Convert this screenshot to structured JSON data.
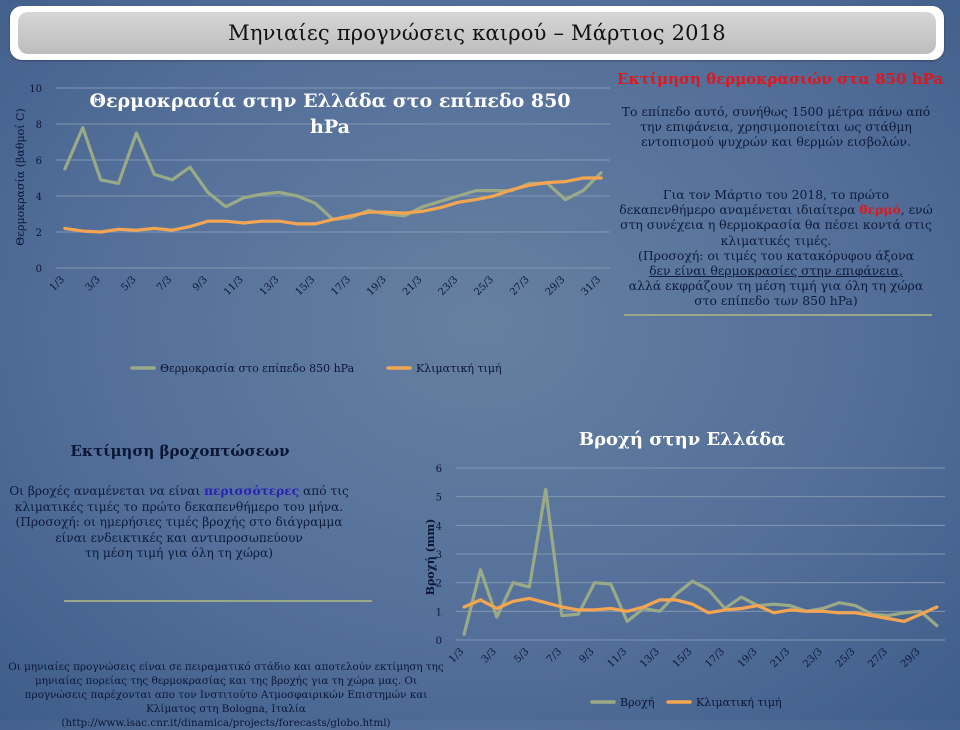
{
  "header": {
    "title": "Μηνιαίες προγνώσεις καιρού – Μάρτιος 2018"
  },
  "temp_panel": {
    "heading": "Εκτίμηση θερμοκρασιών στα 850 hPa",
    "p1": "Το επίπεδο αυτό, συνήθως 1500 μέτρα πάνω από την επιφάνεια, χρησιμοποιείται ως στάθμη εντοπισμού ψυχρών και θερμών εισβολών.",
    "p2_a": "Για τον Μάρτιο του 2018, το πρώτο δεκαπενθήμερο αναμένεται ιδιαίτερα ",
    "p2_hl": "θερμό",
    "p2_b": ", ενώ στη συνέχεια η θερμοκρασία θα πέσει κοντά στις κλιματικές τιμές.",
    "p2_c": "(Προσοχή: οι τιμές του κατακόρυφου άξονα",
    "p2_u": "δεν είναι θερμοκρασίες στην επιφάνεια,",
    "p2_d": "αλλά εκφράζουν τη μέση τιμή για όλη τη χώρα στο επίπεδο των 850 hPa)"
  },
  "rain_panel": {
    "heading": "Εκτίμηση βροχοπτώσεων",
    "p_a": "Οι βροχές αναμένεται να είναι ",
    "p_hl": "περισσότερες",
    "p_b": " από τις κλιματικές τιμές το πρώτο δεκαπενθήμερο του μήνα.",
    "p_c": "(Προσοχή: οι ημερήσιες τιμές βροχής στο διάγραμμα είναι ενδεικτικές και αντιπροσωπεύουν",
    "p_d": "τη μέση τιμή για όλη τη χώρα)"
  },
  "footer": {
    "text": "Οι μηνιαίες προγνώσεις είναι σε πειραματικό στάδιο και αποτελούν εκτίμηση της μηνιαίας πορείας της θερμοκρασίας και της βροχής για τη χώρα μας. Οι προγνώσεις παρέχονται απο τον Ινστιτούτο Ατμοσφαιρικών Επιστημών και Κλίματος στη Bologna, Ιταλία (http://www.isac.cnr.it/dinamica/projects/forecasts/globo.html)"
  },
  "colors": {
    "forecast": "#9aaa86",
    "climate": "#f3a552",
    "grid": "#8296b2",
    "axis_text": "#0b1636"
  },
  "chart_data": [
    {
      "type": "line",
      "title": "Θερμοκρασία στην Ελλάδα στο επίπεδο 850 hPa",
      "xlabel": "",
      "ylabel": "Θερμοκρασία (βαθμοί C)",
      "ylim": [
        0,
        10
      ],
      "yticks": [
        0,
        2,
        4,
        6,
        8,
        10
      ],
      "x": [
        "1/3",
        "2/3",
        "3/3",
        "4/3",
        "5/3",
        "6/3",
        "7/3",
        "8/3",
        "9/3",
        "10/3",
        "11/3",
        "12/3",
        "13/3",
        "14/3",
        "15/3",
        "16/3",
        "17/3",
        "18/3",
        "19/3",
        "20/3",
        "21/3",
        "22/3",
        "23/3",
        "24/3",
        "25/3",
        "26/3",
        "27/3",
        "28/3",
        "29/3",
        "30/3",
        "31/3"
      ],
      "xtick_labels": [
        "1/3",
        "3/3",
        "5/3",
        "7/3",
        "9/3",
        "11/3",
        "13/3",
        "15/3",
        "17/3",
        "19/3",
        "21/3",
        "23/3",
        "25/3",
        "27/3",
        "29/3",
        "31/3"
      ],
      "legend": "bottom",
      "series": [
        {
          "name": "Θερμοκρασία στο επίπεδο 850 hPa",
          "values": [
            5.5,
            7.8,
            4.9,
            4.7,
            7.5,
            5.2,
            4.9,
            5.6,
            4.2,
            3.4,
            3.9,
            4.1,
            4.2,
            4.0,
            3.6,
            2.7,
            2.8,
            3.2,
            3.0,
            2.9,
            3.4,
            3.7,
            4.0,
            4.3,
            4.3,
            4.3,
            4.7,
            4.7,
            3.8,
            4.3,
            5.3
          ]
        },
        {
          "name": "Κλιματική τιμή",
          "values": [
            2.2,
            2.05,
            2.0,
            2.15,
            2.1,
            2.2,
            2.1,
            2.3,
            2.6,
            2.6,
            2.5,
            2.6,
            2.6,
            2.45,
            2.45,
            2.7,
            2.9,
            3.1,
            3.1,
            3.05,
            3.15,
            3.35,
            3.65,
            3.8,
            4.0,
            4.35,
            4.6,
            4.75,
            4.8,
            5.0,
            5.0
          ]
        }
      ]
    },
    {
      "type": "line",
      "title": "Βροχή στην Ελλάδα",
      "xlabel": "",
      "ylabel": "Βροχή (mm)",
      "ylim": [
        0,
        6
      ],
      "yticks": [
        0,
        1,
        2,
        3,
        4,
        5,
        6
      ],
      "x": [
        "1/3",
        "2/3",
        "3/3",
        "4/3",
        "5/3",
        "6/3",
        "7/3",
        "8/3",
        "9/3",
        "10/3",
        "11/3",
        "12/3",
        "13/3",
        "14/3",
        "15/3",
        "16/3",
        "17/3",
        "18/3",
        "19/3",
        "20/3",
        "21/3",
        "22/3",
        "23/3",
        "24/3",
        "25/3",
        "26/3",
        "27/3",
        "28/3",
        "29/3",
        "30/3"
      ],
      "xtick_labels": [
        "1/3",
        "3/3",
        "5/3",
        "7/3",
        "9/3",
        "11/3",
        "13/3",
        "15/3",
        "17/3",
        "19/3",
        "21/3",
        "23/3",
        "25/3",
        "27/3",
        "29/3"
      ],
      "legend": "bottom",
      "series": [
        {
          "name": "Βροχή",
          "values": [
            0.2,
            2.45,
            0.8,
            2.0,
            1.85,
            5.25,
            0.85,
            0.9,
            2.0,
            1.95,
            0.65,
            1.1,
            1.0,
            1.6,
            2.05,
            1.75,
            1.1,
            1.5,
            1.2,
            1.25,
            1.2,
            1.0,
            1.1,
            1.3,
            1.2,
            0.9,
            0.85,
            0.95,
            1.0,
            0.5
          ]
        },
        {
          "name": "Κλιματική τιμή",
          "values": [
            1.15,
            1.4,
            1.1,
            1.35,
            1.45,
            1.3,
            1.15,
            1.05,
            1.05,
            1.1,
            1.0,
            1.15,
            1.4,
            1.4,
            1.25,
            0.95,
            1.05,
            1.1,
            1.2,
            0.95,
            1.05,
            1.0,
            1.0,
            0.95,
            0.95,
            0.85,
            0.75,
            0.65,
            0.9,
            1.15
          ]
        }
      ]
    }
  ]
}
